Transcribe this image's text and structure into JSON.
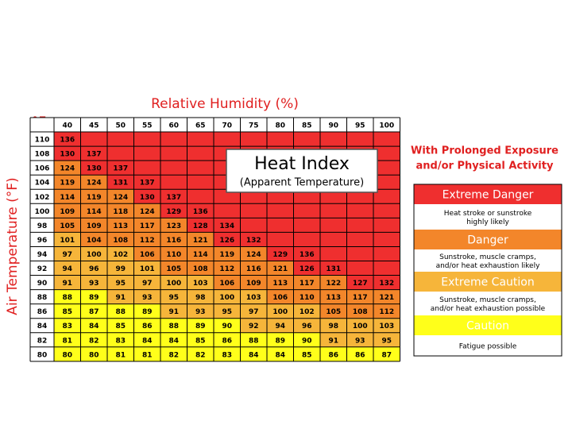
{
  "title": "Relative Humidity (%)",
  "y_axis_label": "Air Temperature (°F)",
  "unit": "°F",
  "table": {
    "columns": [
      40,
      45,
      50,
      55,
      60,
      65,
      70,
      75,
      80,
      85,
      90,
      95,
      100
    ],
    "rows": [
      {
        "temp": 110,
        "values": [
          136
        ]
      },
      {
        "temp": 108,
        "values": [
          130,
          137
        ]
      },
      {
        "temp": 106,
        "values": [
          124,
          130,
          137
        ]
      },
      {
        "temp": 104,
        "values": [
          119,
          124,
          131,
          137
        ]
      },
      {
        "temp": 102,
        "values": [
          114,
          119,
          124,
          130,
          137
        ]
      },
      {
        "temp": 100,
        "values": [
          109,
          114,
          118,
          124,
          129,
          136
        ]
      },
      {
        "temp": 98,
        "values": [
          105,
          109,
          113,
          117,
          123,
          128,
          134
        ]
      },
      {
        "temp": 96,
        "values": [
          101,
          104,
          108,
          112,
          116,
          121,
          126,
          132
        ]
      },
      {
        "temp": 94,
        "values": [
          97,
          100,
          102,
          106,
          110,
          114,
          119,
          124,
          129,
          136
        ]
      },
      {
        "temp": 92,
        "values": [
          94,
          96,
          99,
          101,
          105,
          108,
          112,
          116,
          121,
          126,
          131
        ]
      },
      {
        "temp": 90,
        "values": [
          91,
          93,
          95,
          97,
          100,
          103,
          106,
          109,
          113,
          117,
          122,
          127,
          132
        ]
      },
      {
        "temp": 88,
        "values": [
          88,
          89,
          91,
          93,
          95,
          98,
          100,
          103,
          106,
          110,
          113,
          117,
          121
        ]
      },
      {
        "temp": 86,
        "values": [
          85,
          87,
          88,
          89,
          91,
          93,
          95,
          97,
          100,
          102,
          105,
          108,
          112
        ]
      },
      {
        "temp": 84,
        "values": [
          83,
          84,
          85,
          86,
          88,
          89,
          90,
          92,
          94,
          96,
          98,
          100,
          103
        ]
      },
      {
        "temp": 82,
        "values": [
          81,
          82,
          83,
          84,
          84,
          85,
          86,
          88,
          89,
          90,
          91,
          93,
          95
        ]
      },
      {
        "temp": 80,
        "values": [
          80,
          80,
          81,
          81,
          82,
          82,
          83,
          84,
          84,
          85,
          86,
          86,
          87
        ]
      }
    ]
  },
  "overlay": {
    "title": "Heat Index",
    "subtitle": "(Apparent Temperature)"
  },
  "legend": {
    "title_lines": [
      "With Prolonged Exposure",
      "and/or Physical Activity"
    ],
    "items": [
      {
        "label": "Extreme Danger",
        "description": [
          "Heat stroke or sunstroke",
          "highly likely"
        ],
        "color": "#ef2f2f"
      },
      {
        "label": "Danger",
        "description": [
          "Sunstroke, muscle cramps,",
          "and/or heat exhaustion likely"
        ],
        "color": "#f3862a"
      },
      {
        "label": "Extreme Caution",
        "description": [
          "Sunstroke, muscle cramps,",
          "and/or heat exhaustion possible"
        ],
        "color": "#f6b53a"
      },
      {
        "label": "Caution",
        "description": [
          "Fatigue possible"
        ],
        "color": "#ffff1a"
      }
    ]
  }
}
